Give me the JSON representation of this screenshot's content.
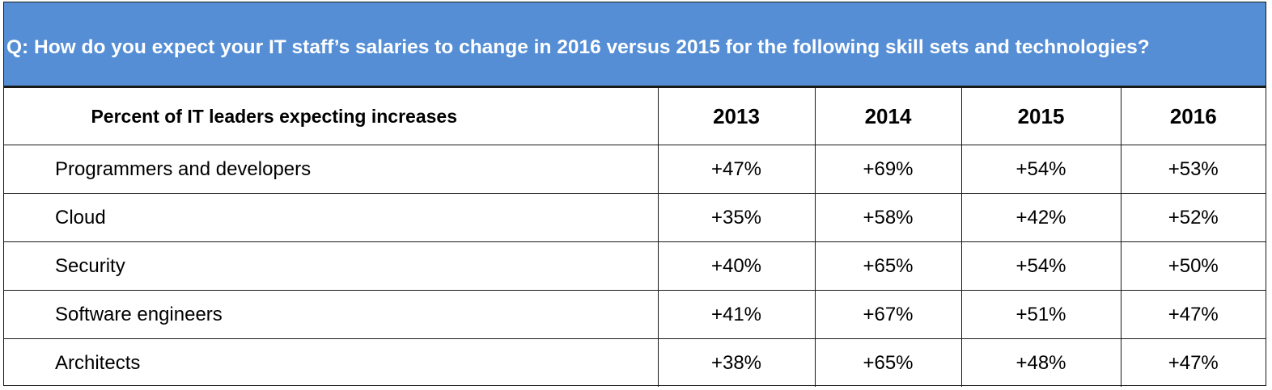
{
  "question": "Q: How do you expect your IT staff’s salaries to change in 2016 versus 2015 for the following skill sets and technologies?",
  "chart_data": {
    "type": "table",
    "title": "Q: How do you expect your IT staff’s salaries to change in 2016 versus 2015 for the following skill sets and technologies?",
    "row_header": "Percent of IT leaders expecting increases",
    "columns": [
      "2013",
      "2014",
      "2015",
      "2016"
    ],
    "rows": [
      {
        "label": "Programmers and developers",
        "values": [
          "+47%",
          "+69%",
          "+54%",
          "+53%"
        ]
      },
      {
        "label": "Cloud",
        "values": [
          "+35%",
          "+58%",
          "+42%",
          "+52%"
        ]
      },
      {
        "label": "Security",
        "values": [
          "+40%",
          "+65%",
          "+54%",
          "+50%"
        ]
      },
      {
        "label": "Software engineers",
        "values": [
          "+41%",
          "+67%",
          "+51%",
          "+47%"
        ]
      },
      {
        "label": "Architects",
        "values": [
          "+38%",
          "+65%",
          "+48%",
          "+47%"
        ]
      }
    ]
  },
  "colors": {
    "banner": "#558ed5",
    "banner_text": "#ffffff",
    "border": "#1a1a1a"
  }
}
